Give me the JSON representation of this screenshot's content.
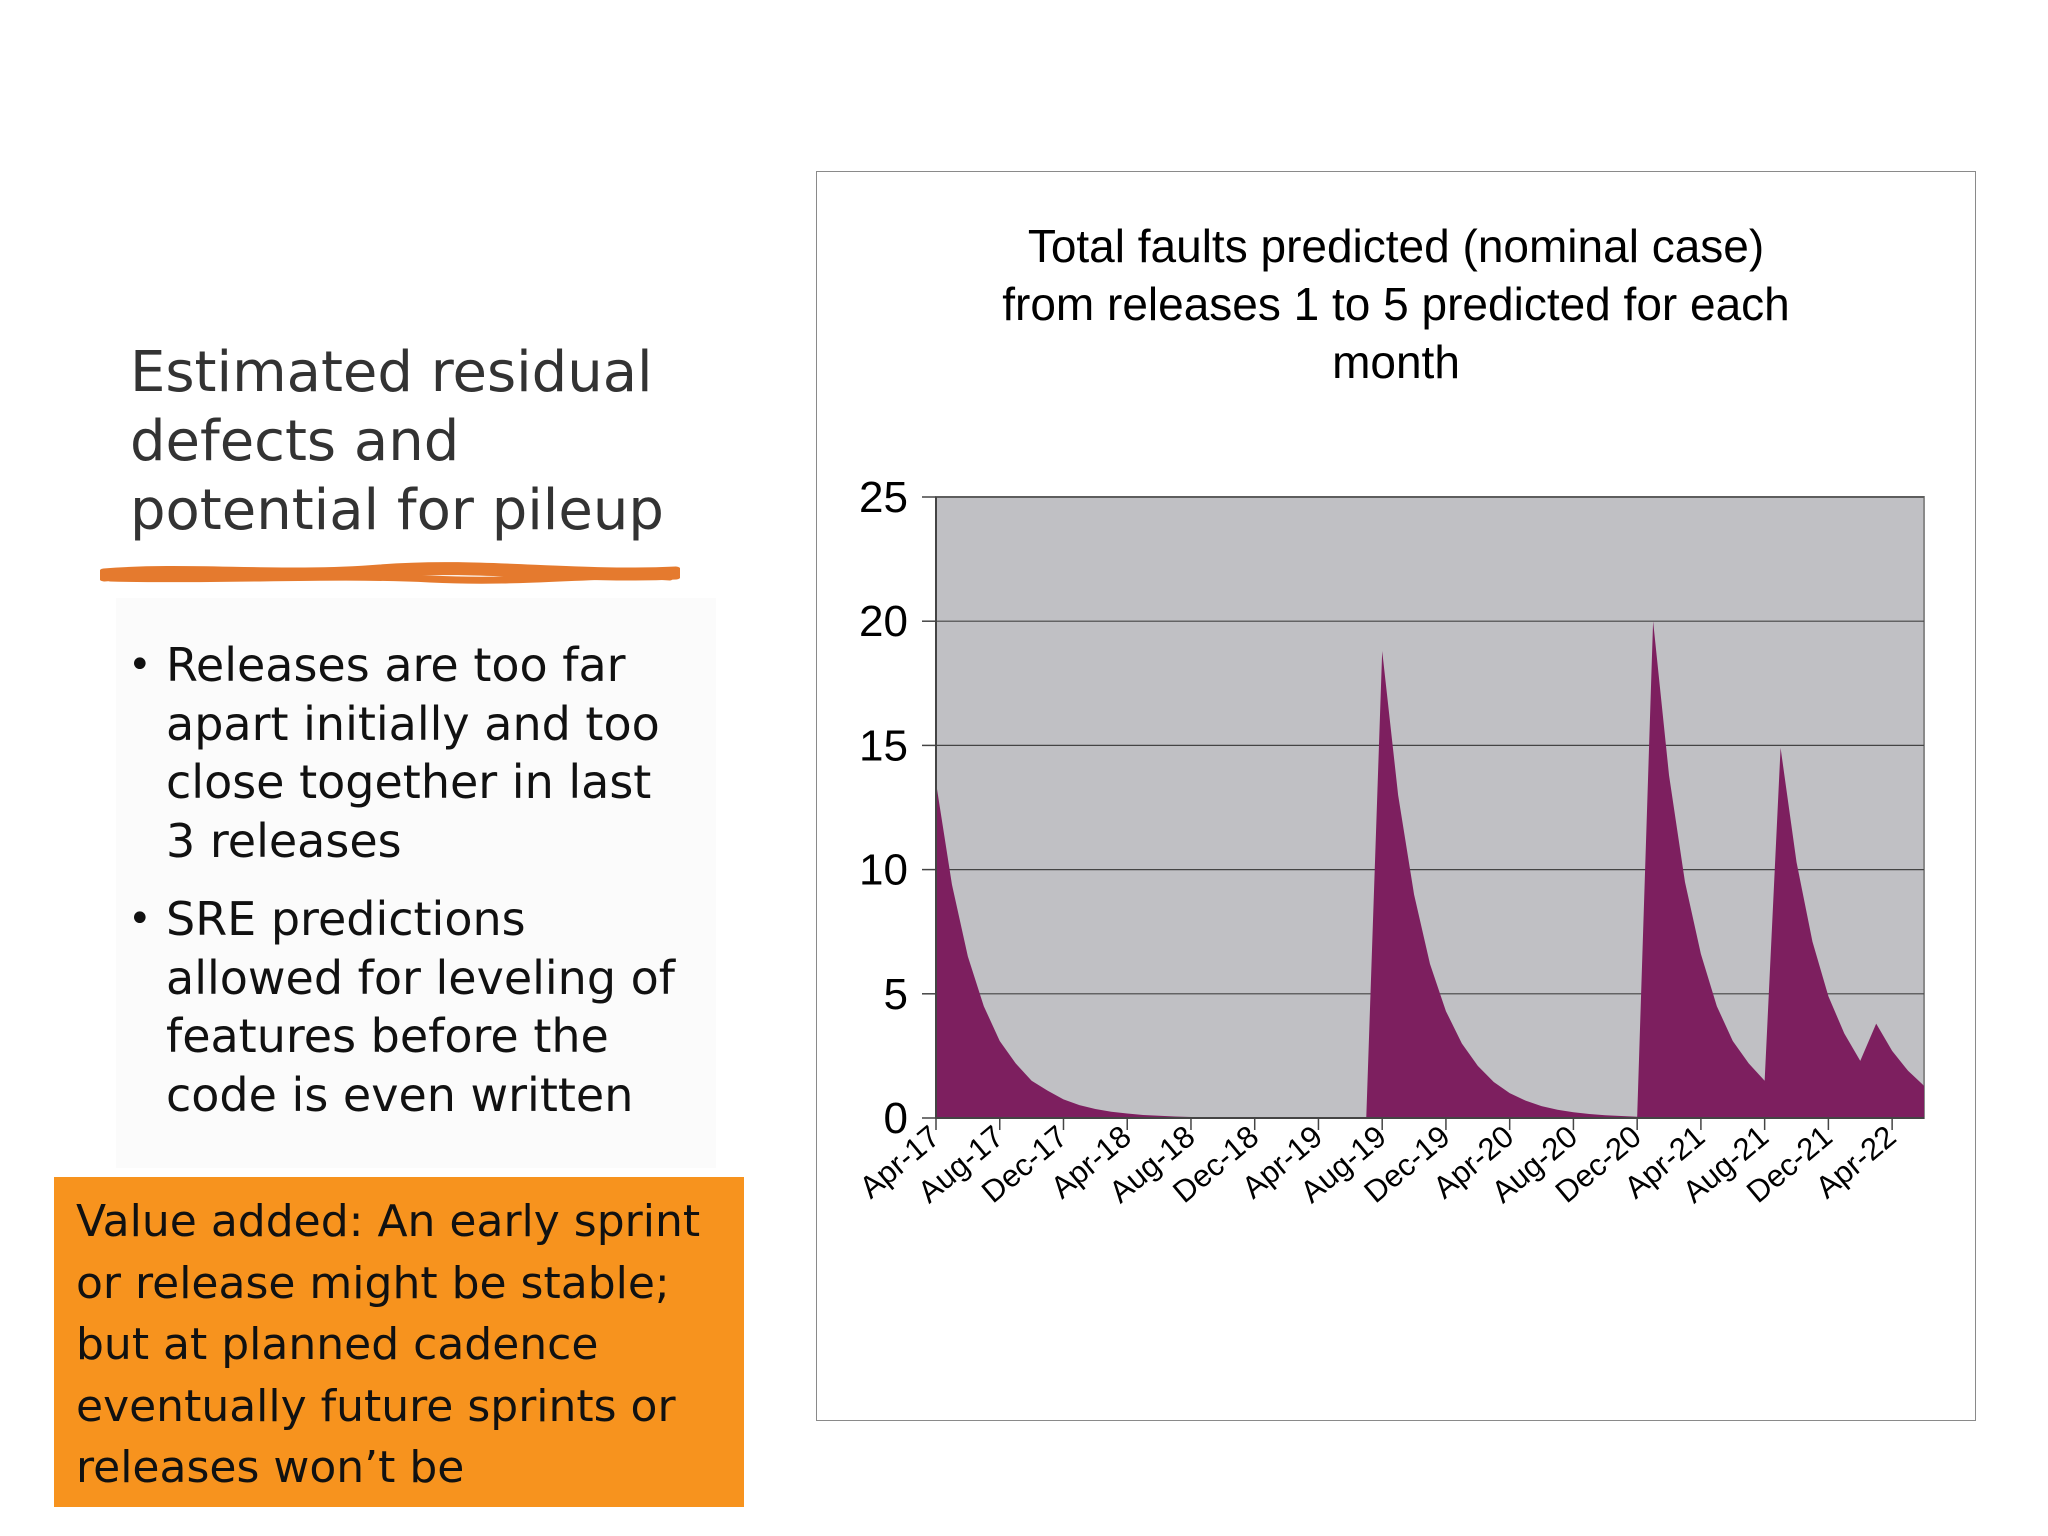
{
  "slide": {
    "title": "Estimated residual defects and potential for pileup",
    "bullets": [
      "Releases are too far apart initially and too close together in last 3 releases",
      "SRE predictions allowed for leveling of features before the code is even written"
    ],
    "bullet_glyph": "•",
    "value_added": "Value added: An early sprint or release might be stable; but at planned cadence eventually future sprints or releases won’t be"
  },
  "colors": {
    "accent_brush": "#e57a2e",
    "value_box": "#f7931e",
    "plot_area": "#c0c0c4",
    "series_fill": "#7d1f5f"
  },
  "chart_data": {
    "type": "area",
    "title_lines": [
      "Total faults predicted (nominal case)",
      "from releases 1 to 5 predicted for each",
      "month"
    ],
    "xlabel": "",
    "ylabel": "",
    "ylim": [
      0,
      25
    ],
    "yticks": [
      0,
      5,
      10,
      15,
      20,
      25
    ],
    "grid": true,
    "legend": "none",
    "x_tick_labels": [
      "Apr-17",
      "Aug-17",
      "Dec-17",
      "Apr-18",
      "Aug-18",
      "Dec-18",
      "Apr-19",
      "Aug-19",
      "Dec-19",
      "Apr-20",
      "Aug-20",
      "Dec-20",
      "Apr-21",
      "Aug-21",
      "Dec-21",
      "Apr-22"
    ],
    "x_start": "Apr-17",
    "x_end": "Jul-22",
    "series": [
      {
        "values": [
          13.5,
          9.4,
          6.5,
          4.5,
          3.1,
          2.2,
          1.5,
          1.1,
          0.75,
          0.52,
          0.36,
          0.25,
          0.18,
          0.12,
          0.09,
          0.06,
          0.04,
          0.03,
          0.02,
          0.01,
          0.01,
          0.01,
          0.0,
          0.0,
          0.0,
          0.0,
          0.0,
          0.0,
          18.8,
          13.0,
          9.0,
          6.2,
          4.3,
          3.0,
          2.1,
          1.45,
          1.0,
          0.7,
          0.48,
          0.33,
          0.23,
          0.16,
          0.11,
          0.08,
          0.05,
          20.0,
          13.8,
          9.5,
          6.6,
          4.5,
          3.1,
          2.2,
          1.5,
          14.9,
          10.3,
          7.1,
          4.9,
          3.4,
          2.3,
          3.8,
          2.7,
          1.9,
          1.3
        ]
      }
    ]
  }
}
